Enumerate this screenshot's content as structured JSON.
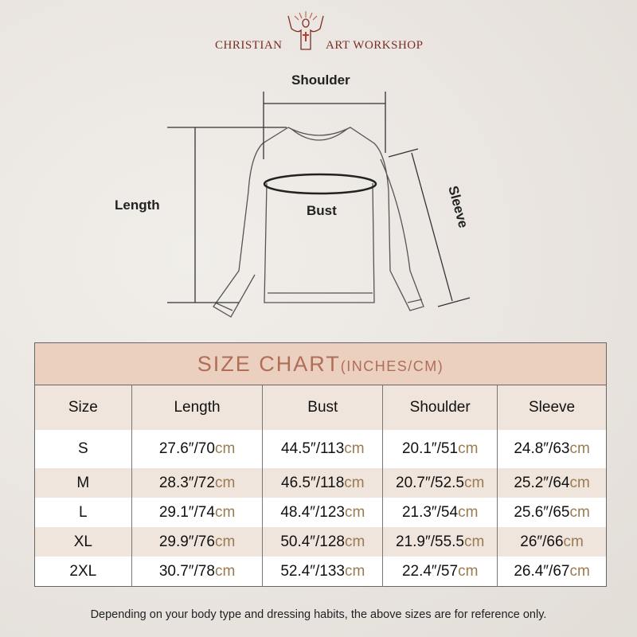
{
  "brand": {
    "left": "CHRISTIAN",
    "right": "ART WORKSHOP"
  },
  "diagram": {
    "shoulder": "Shoulder",
    "length": "Length",
    "bust": "Bust",
    "sleeve": "Sleeve"
  },
  "table": {
    "title": "SIZE CHART",
    "title_unit": "(INCHES/CM)",
    "headers": [
      "Size",
      "Length",
      "Bust",
      "Shoulder",
      "Sleeve"
    ],
    "unit": "cm",
    "rows": [
      [
        "S",
        "27.6″/70",
        "44.5″/113",
        "20.1″/51",
        "24.8″/63"
      ],
      [
        "M",
        "28.3″/72",
        "46.5″/118",
        "20.7″/52.5",
        "25.2″/64"
      ],
      [
        "L",
        "29.1″/74",
        "48.4″/123",
        "21.3″/54",
        "25.6″/65"
      ],
      [
        "XL",
        "29.9″/76",
        "50.4″/128",
        "21.9″/55.5",
        "26″/66"
      ],
      [
        "2XL",
        "30.7″/78",
        "52.4″/133",
        "22.4″/57",
        "26.4″/67"
      ]
    ]
  },
  "note": "Depending on your body type and dressing habits, the above sizes are for reference only.",
  "colors": {
    "brand": "#7a2e22",
    "title_band": "#ebd0c0",
    "title_text": "#b06d58",
    "cm_text": "#9b7a52",
    "alt_row": "#f0e5dc"
  }
}
